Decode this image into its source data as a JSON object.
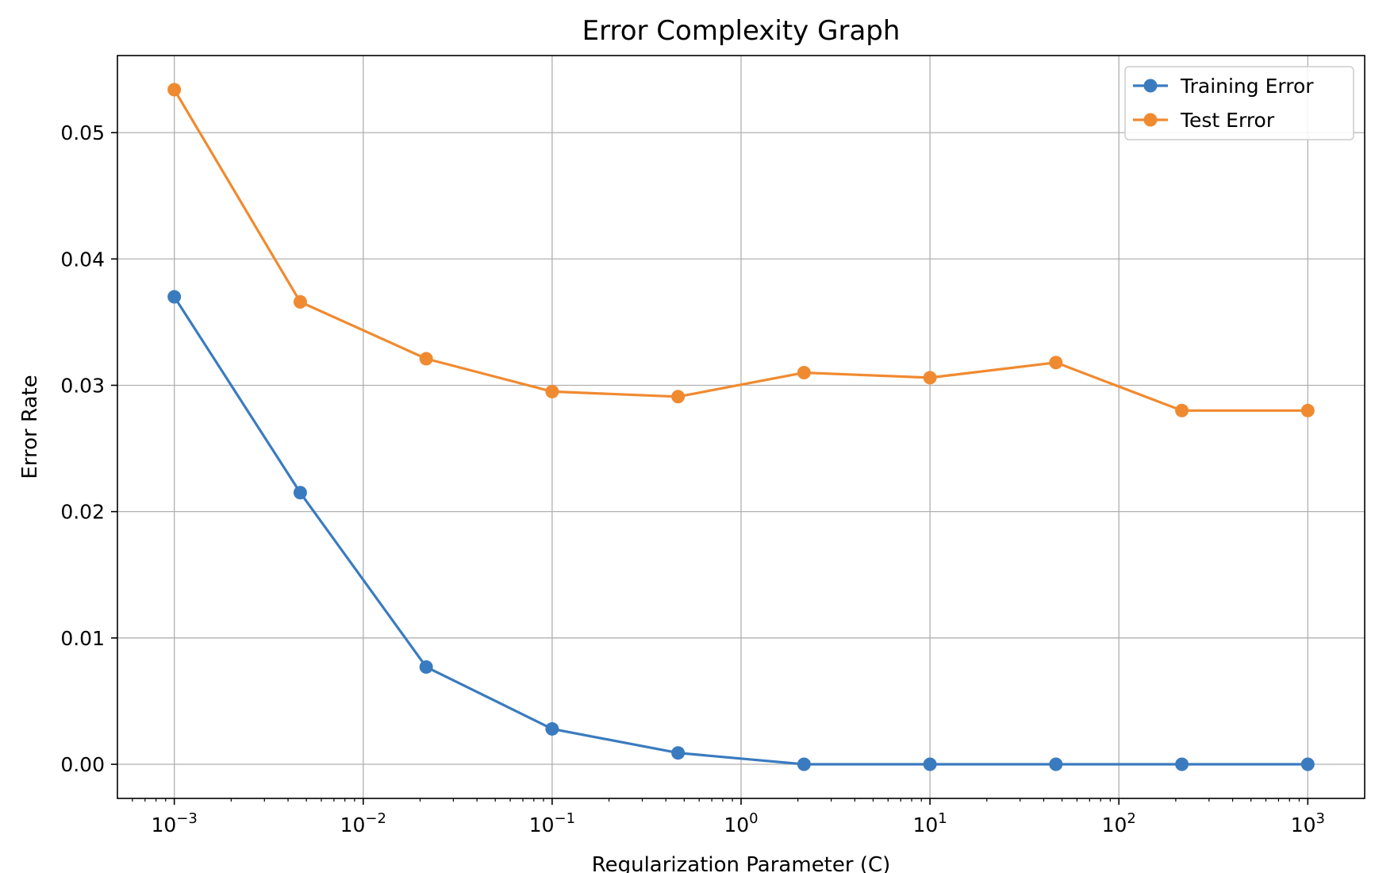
{
  "chart_data": {
    "type": "line",
    "title": "Error Complexity Graph",
    "xlabel": "Regularization Parameter (C)",
    "ylabel": "Error Rate",
    "x_scale": "log",
    "xlim": [
      0.0005,
      2000
    ],
    "ylim": [
      -0.0027,
      0.0561
    ],
    "grid": true,
    "legend_position": "top-right",
    "x_ticks": [
      {
        "value": 0.001,
        "base": "10",
        "exp": "−3"
      },
      {
        "value": 0.01,
        "base": "10",
        "exp": "−2"
      },
      {
        "value": 0.1,
        "base": "10",
        "exp": "−1"
      },
      {
        "value": 1,
        "base": "10",
        "exp": "0"
      },
      {
        "value": 10,
        "base": "10",
        "exp": "1"
      },
      {
        "value": 100,
        "base": "10",
        "exp": "2"
      },
      {
        "value": 1000,
        "base": "10",
        "exp": "3"
      }
    ],
    "y_ticks": [
      {
        "value": 0.0,
        "label": "0.00"
      },
      {
        "value": 0.01,
        "label": "0.01"
      },
      {
        "value": 0.02,
        "label": "0.02"
      },
      {
        "value": 0.03,
        "label": "0.03"
      },
      {
        "value": 0.04,
        "label": "0.04"
      },
      {
        "value": 0.05,
        "label": "0.05"
      }
    ],
    "x": [
      0.001,
      0.004642,
      0.021544,
      0.1,
      0.464159,
      2.154435,
      10,
      46.415888,
      215.443469,
      1000
    ],
    "series": [
      {
        "name": "Training Error",
        "color": "#3a7bbf",
        "values": [
          0.037,
          0.0215,
          0.0077,
          0.0028,
          0.0009,
          0.0,
          0.0,
          0.0,
          0.0,
          0.0
        ]
      },
      {
        "name": "Test Error",
        "color": "#f08a30",
        "values": [
          0.0534,
          0.0366,
          0.0321,
          0.0295,
          0.0291,
          0.031,
          0.0306,
          0.0318,
          0.028,
          0.028
        ]
      }
    ]
  }
}
